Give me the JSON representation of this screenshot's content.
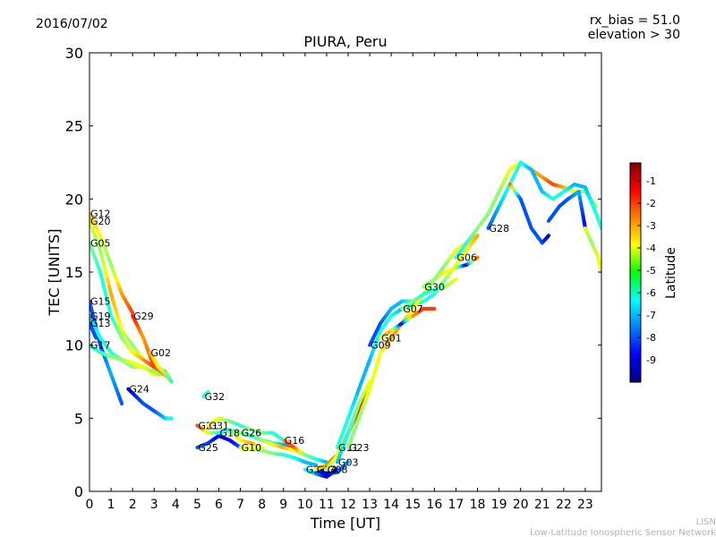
{
  "header": {
    "date": "2016/07/02",
    "rx_bias": "rx_bias = 51.0",
    "elevation": "elevation > 30"
  },
  "footer": {
    "line1": "LISN",
    "line2": "Low-Latitude Ionospheric Sensor Network"
  },
  "chart_data": {
    "type": "line",
    "title": "PIURA, Peru",
    "xlabel": "Time [UT]",
    "ylabel": "TEC [UNITS]",
    "xlim": [
      0,
      23.75
    ],
    "ylim": [
      0,
      30
    ],
    "x_ticks": [
      "0",
      "1",
      "2",
      "3",
      "4",
      "5",
      "6",
      "7",
      "8",
      "9",
      "10",
      "11",
      "12",
      "13",
      "14",
      "15",
      "16",
      "17",
      "18",
      "19",
      "20",
      "21",
      "22",
      "23"
    ],
    "y_ticks": [
      "0",
      "5",
      "10",
      "15",
      "20",
      "25",
      "30"
    ],
    "grid": false,
    "colorbar": {
      "label": "Latitude",
      "range": [
        -10,
        -0.2
      ],
      "ticks": [
        "-1",
        "-2",
        "-3",
        "-4",
        "-5",
        "-6",
        "-7",
        "-8",
        "-9"
      ]
    },
    "series": [
      {
        "name": "G12",
        "x": [
          0,
          0.5,
          1,
          1.5,
          2
        ],
        "y": [
          19,
          17.5,
          15.5,
          13.5,
          12.2
        ],
        "lat": [
          -3,
          -4,
          -5,
          -3,
          -2
        ]
      },
      {
        "name": "G20",
        "x": [
          0,
          0.5,
          1,
          1.5,
          2,
          2.5,
          3,
          3.5,
          3.8
        ],
        "y": [
          18.5,
          16.5,
          13.5,
          11,
          10,
          9,
          8.5,
          8.2,
          7.5
        ],
        "lat": [
          -4,
          -5,
          -3,
          -4,
          -5,
          -4,
          -3,
          -2.5,
          -2
        ]
      },
      {
        "name": "G05",
        "x": [
          0,
          0.5,
          1,
          1.5,
          2,
          2.5,
          3,
          3.5,
          3.8
        ],
        "y": [
          17,
          15,
          12,
          10.5,
          9.5,
          9,
          8.5,
          8,
          7.5
        ],
        "lat": [
          -5,
          -6,
          -6,
          -5,
          -4,
          -3,
          -2,
          -3,
          -4
        ]
      },
      {
        "name": "G15",
        "x": [
          0,
          0.5,
          1,
          1.5
        ],
        "y": [
          13,
          10,
          8,
          6
        ],
        "lat": [
          -8,
          -8,
          -7,
          -8
        ]
      },
      {
        "name": "G19",
        "x": [
          0,
          0.5,
          1,
          1.5,
          2,
          2.5,
          3,
          3.5,
          3.8
        ],
        "y": [
          12,
          10.5,
          9.5,
          9,
          8.5,
          8.5,
          8,
          8,
          7.5
        ],
        "lat": [
          -7,
          -6,
          -6,
          -5,
          -5,
          -4,
          -4,
          -3,
          -3
        ]
      },
      {
        "name": "G13",
        "x": [
          0,
          0.3
        ],
        "y": [
          11.5,
          10.5
        ],
        "lat": [
          -8,
          -8
        ]
      },
      {
        "name": "G17",
        "x": [
          0,
          0.5,
          1,
          1.5,
          2,
          2.5,
          3,
          3.5
        ],
        "y": [
          10,
          9.5,
          9.2,
          9,
          8.8,
          8.5,
          8.2,
          8
        ],
        "lat": [
          -6,
          -6,
          -5,
          -5,
          -4,
          -4,
          -5,
          -5
        ]
      },
      {
        "name": "G29",
        "x": [
          2,
          2.5,
          3,
          3.5,
          3.8
        ],
        "y": [
          12,
          10.5,
          8.5,
          8,
          7.5
        ],
        "lat": [
          -1.5,
          -3,
          -2,
          -3,
          -4
        ]
      },
      {
        "name": "G02",
        "x": [
          2.8,
          3.2,
          3.6,
          3.8
        ],
        "y": [
          9.5,
          8.5,
          8,
          7.5
        ],
        "lat": [
          -3,
          -4,
          -5,
          -6
        ]
      },
      {
        "name": "G24",
        "x": [
          1.8,
          2.5,
          3,
          3.5,
          3.8
        ],
        "y": [
          7,
          6,
          5.5,
          5,
          5
        ],
        "lat": [
          -9,
          -8,
          -8,
          -7,
          -6
        ]
      },
      {
        "name": "G32",
        "x": [
          5.3,
          5.5
        ],
        "y": [
          6.5,
          6.8
        ],
        "lat": [
          -6,
          -6
        ]
      },
      {
        "name": "G21",
        "x": [
          5,
          5.5,
          6,
          6.5,
          7,
          7.5,
          8
        ],
        "y": [
          4.5,
          4,
          4,
          4.2,
          3.5,
          3.3,
          3
        ],
        "lat": [
          -2,
          -4,
          -6,
          -5,
          -4,
          -3,
          -4
        ]
      },
      {
        "name": "G25",
        "x": [
          5,
          5.5,
          6,
          6.5,
          7
        ],
        "y": [
          3,
          3.3,
          3.8,
          3.5,
          3
        ],
        "lat": [
          -8,
          -8,
          -9,
          -9,
          -8
        ]
      },
      {
        "name": "G31",
        "x": [
          5.5,
          6,
          6.5,
          7,
          7.5,
          8,
          8.5,
          9
        ],
        "y": [
          4.5,
          5,
          4.8,
          4.5,
          4.2,
          4,
          4,
          3.5
        ],
        "lat": [
          -4,
          -4,
          -5,
          -6,
          -5,
          -5,
          -6,
          -6
        ]
      },
      {
        "name": "G18",
        "x": [
          6,
          6.5,
          7,
          7.5,
          8,
          8.5,
          9,
          9.5
        ],
        "y": [
          4,
          4.2,
          4,
          3.8,
          3.5,
          3.3,
          3.2,
          3
        ],
        "lat": [
          -6,
          -6,
          -5,
          -6,
          -7,
          -6,
          -7,
          -8
        ]
      },
      {
        "name": "G26",
        "x": [
          7,
          7.5,
          8,
          8.5,
          9,
          9.5,
          10
        ],
        "y": [
          4,
          3.8,
          3.5,
          3.2,
          3,
          2.8,
          2.5
        ],
        "lat": [
          -5,
          -6,
          -5,
          -4,
          -3,
          -4,
          -5
        ]
      },
      {
        "name": "G10",
        "x": [
          7,
          7.5,
          8,
          8.5,
          9,
          9.5,
          10,
          10.5
        ],
        "y": [
          3,
          2.9,
          2.8,
          2.6,
          2.5,
          2.3,
          2,
          1.8
        ],
        "lat": [
          -4,
          -4,
          -5,
          -5,
          -6,
          -6,
          -7,
          -7
        ]
      },
      {
        "name": "G16",
        "x": [
          9,
          9.5,
          10,
          10.5,
          11
        ],
        "y": [
          3.5,
          3,
          2.5,
          2.2,
          2
        ],
        "lat": [
          -3,
          -2,
          -5,
          -6,
          -7
        ]
      },
      {
        "name": "G27",
        "x": [
          10,
          10.5,
          11,
          11.5
        ],
        "y": [
          1.5,
          1.2,
          1,
          1.5
        ],
        "lat": [
          -6,
          -7,
          -9,
          -8
        ]
      },
      {
        "name": "G14",
        "x": [
          10.5,
          11,
          11.5,
          12
        ],
        "y": [
          1.5,
          1.2,
          1.3,
          2
        ],
        "lat": [
          -8,
          -9,
          -8,
          -7
        ]
      },
      {
        "name": "G22",
        "x": [
          10.5,
          11,
          11.5,
          12,
          12.5
        ],
        "y": [
          1.5,
          1.8,
          2.5,
          4,
          6
        ],
        "lat": [
          -4,
          -3,
          -2,
          -3,
          -4
        ]
      },
      {
        "name": "G08",
        "x": [
          11,
          11.5,
          12,
          12.5,
          13
        ],
        "y": [
          1.5,
          2.5,
          4,
          5.5,
          7
        ],
        "lat": [
          -5,
          -4,
          -3,
          -2,
          -1.5
        ]
      },
      {
        "name": "G03",
        "x": [
          11.5,
          12,
          12.5,
          13
        ],
        "y": [
          2,
          4,
          6,
          7.5
        ],
        "lat": [
          -7,
          -6,
          -5,
          -4
        ]
      },
      {
        "name": "G11",
        "x": [
          11.5,
          12,
          12.5,
          13,
          13.5,
          14,
          14.5,
          15,
          15.5,
          16,
          16.5,
          17,
          17.5,
          18
        ],
        "y": [
          3,
          5,
          7,
          9,
          11,
          12,
          12.5,
          12.8,
          13,
          13.5,
          14.5,
          15.5,
          16.5,
          17.5
        ],
        "lat": [
          -6,
          -6,
          -7,
          -7,
          -6,
          -6,
          -7,
          -7,
          -6,
          -6,
          -5,
          -4,
          -4,
          -3
        ]
      },
      {
        "name": "G23",
        "x": [
          12,
          12.5,
          13,
          13.5,
          14,
          14.5,
          15,
          15.5,
          16,
          16.5,
          17,
          17.5,
          18
        ],
        "y": [
          3,
          5,
          7,
          9.5,
          10.5,
          11.5,
          12.5,
          13.5,
          14.5,
          15.5,
          16.5,
          17,
          17.5
        ],
        "lat": [
          -5,
          -5,
          -4,
          -4,
          -3,
          -3,
          -4,
          -4,
          -5,
          -5,
          -4,
          -4,
          -3
        ]
      },
      {
        "name": "G09",
        "x": [
          13,
          13.5,
          14,
          14.5,
          15
        ],
        "y": [
          10,
          11.5,
          12.5,
          13,
          13
        ],
        "lat": [
          -8,
          -8,
          -7,
          -7,
          -6
        ]
      },
      {
        "name": "G01",
        "x": [
          13.5,
          14,
          14.5,
          15,
          15.5,
          16
        ],
        "y": [
          10.5,
          11,
          11.5,
          12,
          12.5,
          12.5
        ],
        "lat": [
          -4,
          -3,
          -9,
          -3,
          -2,
          -2
        ]
      },
      {
        "name": "G07",
        "x": [
          14.5,
          15,
          15.5,
          16,
          16.5,
          17
        ],
        "y": [
          12.5,
          13,
          13.5,
          13.8,
          14,
          14.5
        ],
        "lat": [
          -5,
          -5,
          -6,
          -6,
          -5,
          -4
        ]
      },
      {
        "name": "G30",
        "x": [
          15.5,
          16,
          16.5,
          17,
          17.5,
          18
        ],
        "y": [
          14,
          14.5,
          15,
          15.3,
          15.5,
          16
        ],
        "lat": [
          -5,
          -5,
          -4,
          -4,
          -9,
          -2
        ]
      },
      {
        "name": "G06",
        "x": [
          17,
          17.5,
          18,
          18.5,
          19,
          19.5,
          20,
          20.5,
          21,
          21.5,
          22,
          22.5,
          23,
          23.5
        ],
        "y": [
          16,
          17,
          18,
          19,
          20.5,
          22,
          22.5,
          22,
          21.5,
          21,
          20.8,
          20.5,
          20.5,
          19.5
        ],
        "lat": [
          -6,
          -6,
          -5,
          -5,
          -5,
          -4,
          -4,
          -3,
          -3,
          -2,
          -3,
          -4,
          -5,
          -5
        ]
      },
      {
        "name": "G28",
        "x": [
          18.5,
          19,
          19.5,
          20,
          20.5,
          21,
          21.5,
          22,
          22.5,
          23,
          23.5,
          23.75
        ],
        "y": [
          18,
          19.5,
          21,
          22.5,
          22,
          20.5,
          20,
          20.5,
          21,
          20.8,
          19,
          18
        ],
        "lat": [
          -8,
          -7,
          -6,
          -6,
          -7,
          -7,
          -6,
          -6,
          -7,
          -7,
          -6,
          -6
        ]
      },
      {
        "name": "",
        "x": [
          19.5,
          20,
          20.5,
          21,
          21.3
        ],
        "y": [
          21,
          20,
          18,
          17,
          17.5
        ],
        "lat": [
          -2,
          -8,
          -8,
          -8,
          -9
        ]
      },
      {
        "name": "",
        "x": [
          21.3,
          21.8,
          22.2,
          22.7,
          23
        ],
        "y": [
          18.5,
          19.5,
          20,
          20.5,
          18
        ],
        "lat": [
          -8,
          -8,
          -8,
          -7,
          -9
        ]
      },
      {
        "name": "",
        "x": [
          23,
          23.3,
          23.6,
          23.75
        ],
        "y": [
          18,
          17,
          16,
          15
        ],
        "lat": [
          -4,
          -5,
          -4,
          -4
        ]
      }
    ]
  }
}
